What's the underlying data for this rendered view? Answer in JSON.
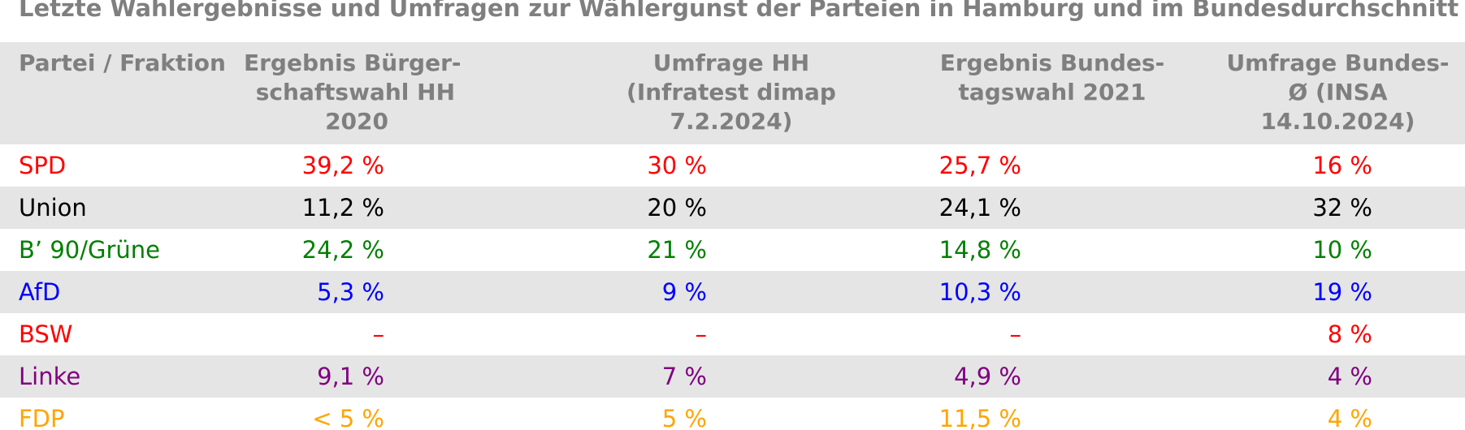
{
  "title": "Letzte Wahlergebnisse und Umfragen zur Wählergunst der Parteien in Hamburg und im Bundesdurchschnitt",
  "headers": {
    "party": "Partei / Fraktion",
    "col1_lines": [
      "Ergebnis Bürger-",
      "schaftswahl HH",
      "2020"
    ],
    "col2_lines": [
      "Umfrage HH",
      "(Infratest dimap",
      "7.2.2024)"
    ],
    "col3_lines": [
      "Ergebnis Bundes-",
      "tagswahl 2021"
    ],
    "col4_lines": [
      "Umfrage Bundes-",
      "Ø (INSA",
      "14.10.2024)"
    ]
  },
  "colors": {
    "SPD": "#ff0000",
    "Union": "#000000",
    "Gruene": "#008000",
    "AfD": "#0000ff",
    "BSW": "#ff0000",
    "Linke": "#800080",
    "FDP": "#ffa500",
    "header_text": "#7f7f7f",
    "shade": "#e5e5e5"
  },
  "rows": [
    {
      "party": "SPD",
      "color": "#ff0000",
      "c1": "39,2 %",
      "c2": "30 %",
      "c3": "25,7 %",
      "c4": "16 %"
    },
    {
      "party": "Union",
      "color": "#000000",
      "c1": "11,2 %",
      "c2": "20 %",
      "c3": "24,1 %",
      "c4": "32 %"
    },
    {
      "party": "B’ 90/Grüne",
      "color": "#008000",
      "c1": "24,2 %",
      "c2": "21 %",
      "c3": "14,8 %",
      "c4": "10 %"
    },
    {
      "party": "AfD",
      "color": "#0000ff",
      "c1": "5,3 %",
      "c2": "9 %",
      "c3": "10,3 %",
      "c4": "19 %"
    },
    {
      "party": "BSW",
      "color": "#ff0000",
      "c1": "–",
      "c2": "–",
      "c3": "–",
      "c4": "8 %"
    },
    {
      "party": "Linke",
      "color": "#800080",
      "c1": "9,1 %",
      "c2": "7 %",
      "c3": "4,9 %",
      "c4": "4 %"
    },
    {
      "party": "FDP",
      "color": "#ffa500",
      "c1": "< 5 %",
      "c2": "5 %",
      "c3": "11,5 %",
      "c4": "4 %"
    }
  ]
}
